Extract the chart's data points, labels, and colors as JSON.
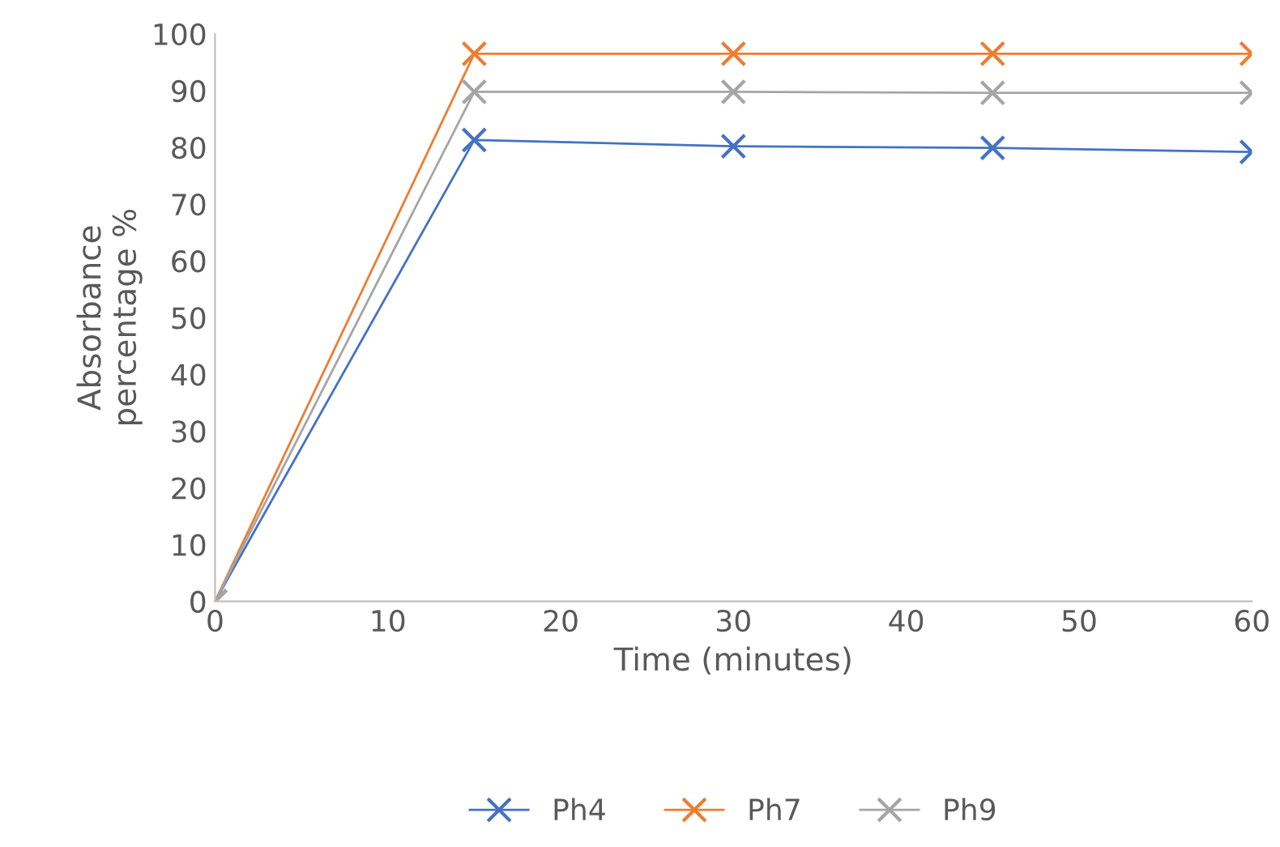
{
  "chart_data": {
    "type": "line",
    "xlabel": "Time (minutes)",
    "ylabel": "Absorbance\npercentage %",
    "x": [
      0,
      15,
      30,
      45,
      60
    ],
    "series": [
      {
        "name": "Ph4",
        "color": "#4472c4",
        "values": [
          0,
          81.3,
          80.2,
          79.9,
          79.2
        ]
      },
      {
        "name": "Ph7",
        "color": "#ed7d31",
        "values": [
          0,
          96.5,
          96.5,
          96.5,
          96.5
        ]
      },
      {
        "name": "Ph9",
        "color": "#a5a5a5",
        "values": [
          0,
          89.8,
          89.8,
          89.6,
          89.6
        ]
      }
    ],
    "xlim": [
      0,
      60
    ],
    "xticks": [
      0,
      10,
      20,
      30,
      40,
      50,
      60
    ],
    "ylim": [
      0,
      100
    ],
    "yticks": [
      0,
      10,
      20,
      30,
      40,
      50,
      60,
      70,
      80,
      90,
      100
    ],
    "grid": false,
    "legend": "bottom",
    "marker": "cross",
    "line_style": "solid"
  }
}
